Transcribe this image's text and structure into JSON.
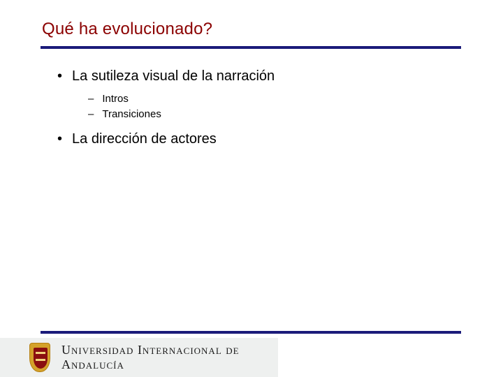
{
  "title": {
    "text": "Qué ha evolucionado?",
    "color": "#8b0000",
    "fontsize": 24
  },
  "underline_color": "#1b1b7a",
  "bullets": [
    {
      "text": "La sutileza visual de la narración",
      "sub": [
        {
          "text": "Intros"
        },
        {
          "text": "Transiciones"
        }
      ]
    },
    {
      "text": "La dirección de actores",
      "sub": []
    }
  ],
  "footer": {
    "org_text": "Universidad Internacional de Andalucía",
    "strip_bg": "#eef0ef",
    "crest_colors": {
      "outer": "#d4a22a",
      "inner": "#8a0f0f",
      "bar": "#f0d37a"
    }
  },
  "background_color": "#ffffff"
}
